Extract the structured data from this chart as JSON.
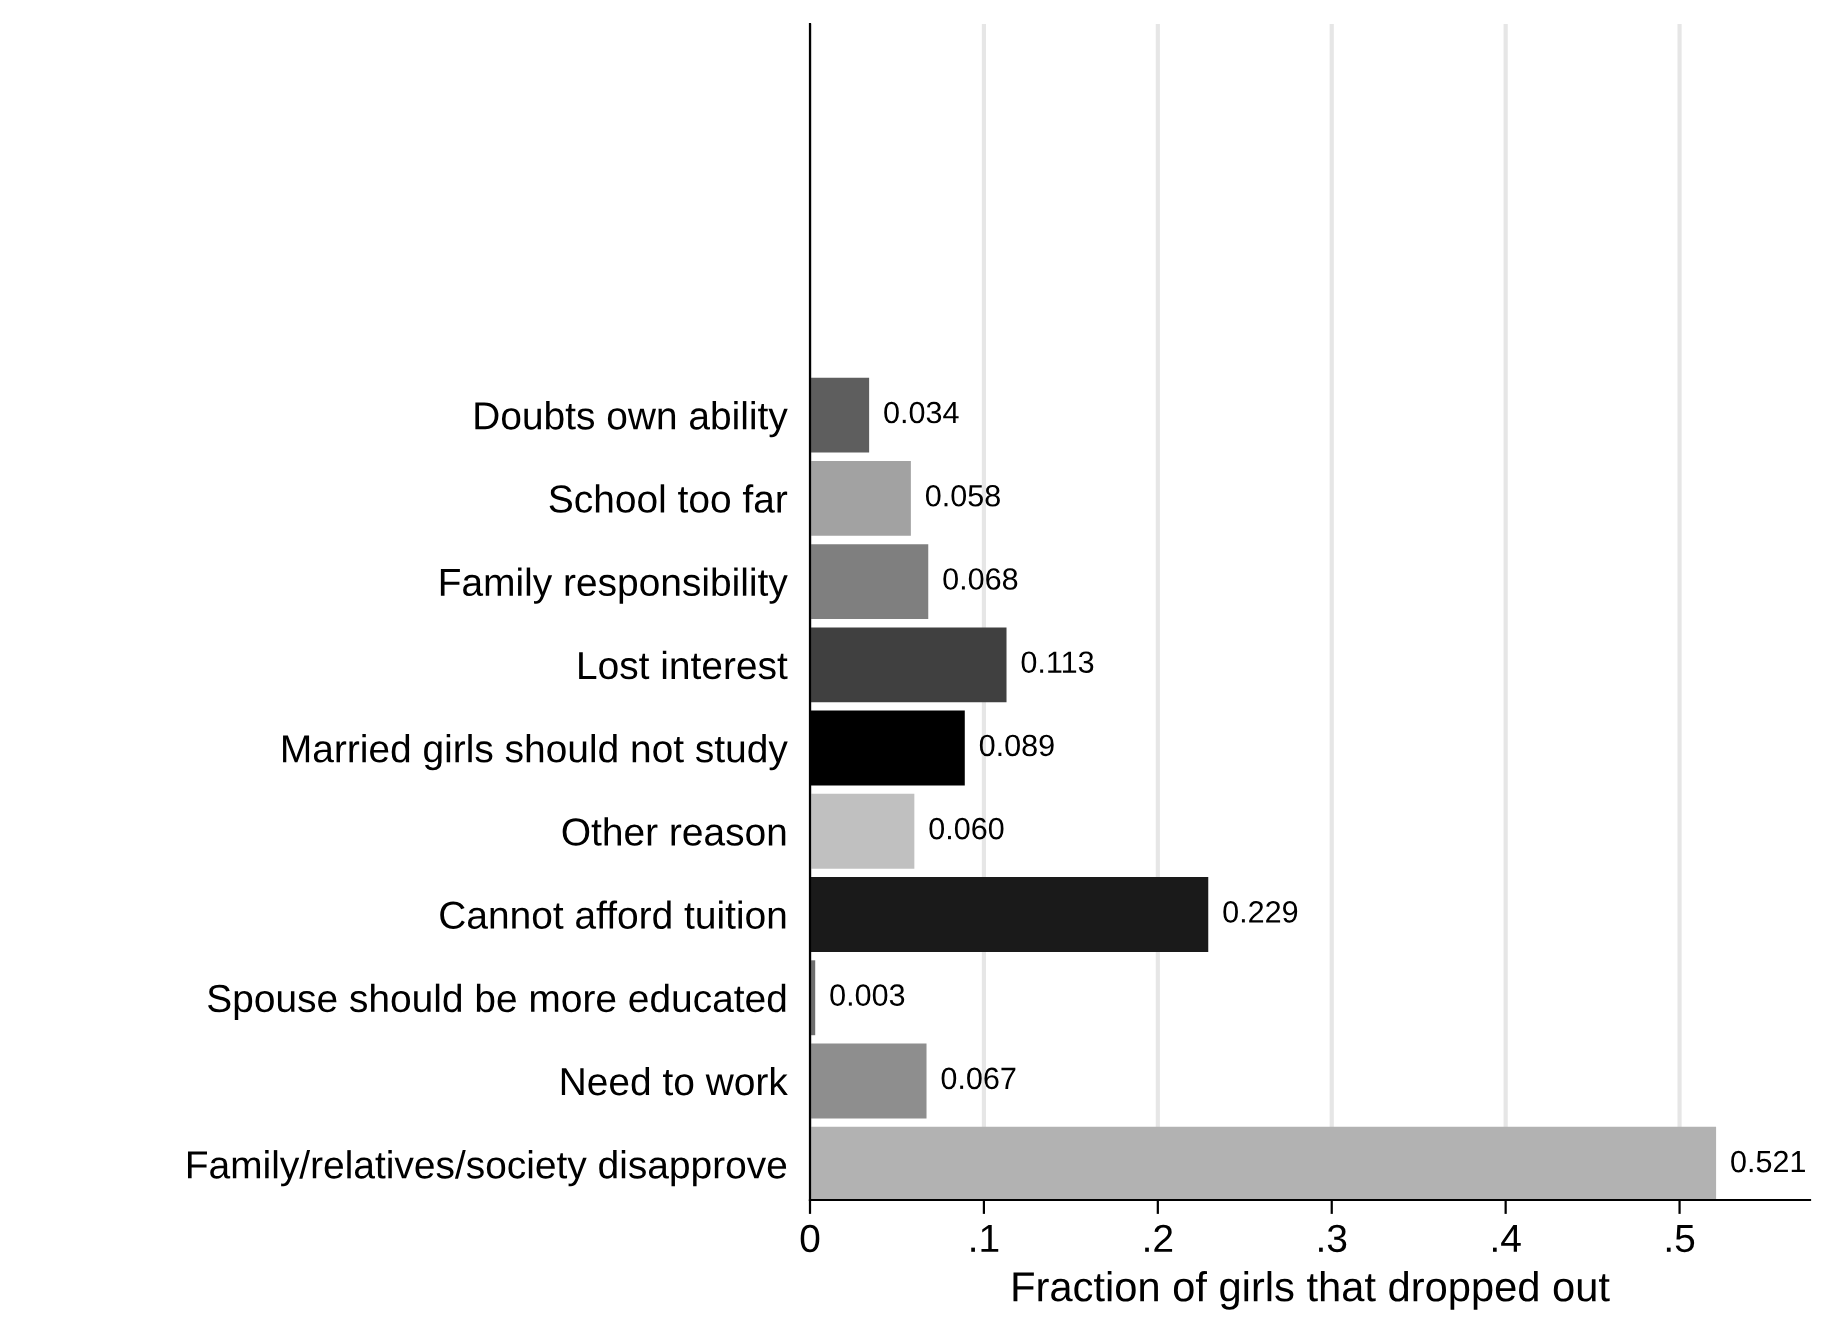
{
  "chart_data": {
    "type": "bar",
    "orientation": "horizontal",
    "xlabel": "Fraction of girls that dropped out",
    "categories": [
      "Doubts own ability",
      "School too far",
      "Family responsibility",
      "Lost interest",
      "Married girls should not study",
      "Other reason",
      "Cannot afford tuition",
      "Spouse should be more educated",
      "Need to work",
      "Family/relatives/society disapprove"
    ],
    "values": [
      0.034,
      0.058,
      0.068,
      0.113,
      0.089,
      0.06,
      0.229,
      0.003,
      0.067,
      0.521
    ],
    "colors": [
      "#5e5e5e",
      "#a2a2a2",
      "#7f7f7f",
      "#404040",
      "#000000",
      "#c0c0c0",
      "#1a1a1a",
      "#6e6e6e",
      "#8e8e8e",
      "#b2b2b2"
    ],
    "value_labels": [
      "0.034",
      "0.058",
      "0.068",
      "0.113",
      "0.089",
      "0.060",
      "0.229",
      "0.003",
      "0.067",
      "0.521"
    ],
    "xlim": [
      0,
      0.575
    ],
    "xticks": [
      {
        "value": 0,
        "label": "0"
      },
      {
        "value": 0.1,
        "label": ".1"
      },
      {
        "value": 0.2,
        "label": ".2"
      },
      {
        "value": 0.3,
        "label": ".3"
      },
      {
        "value": 0.4,
        "label": ".4"
      },
      {
        "value": 0.5,
        "label": ".5"
      }
    ],
    "grid": "x",
    "legend": false
  }
}
